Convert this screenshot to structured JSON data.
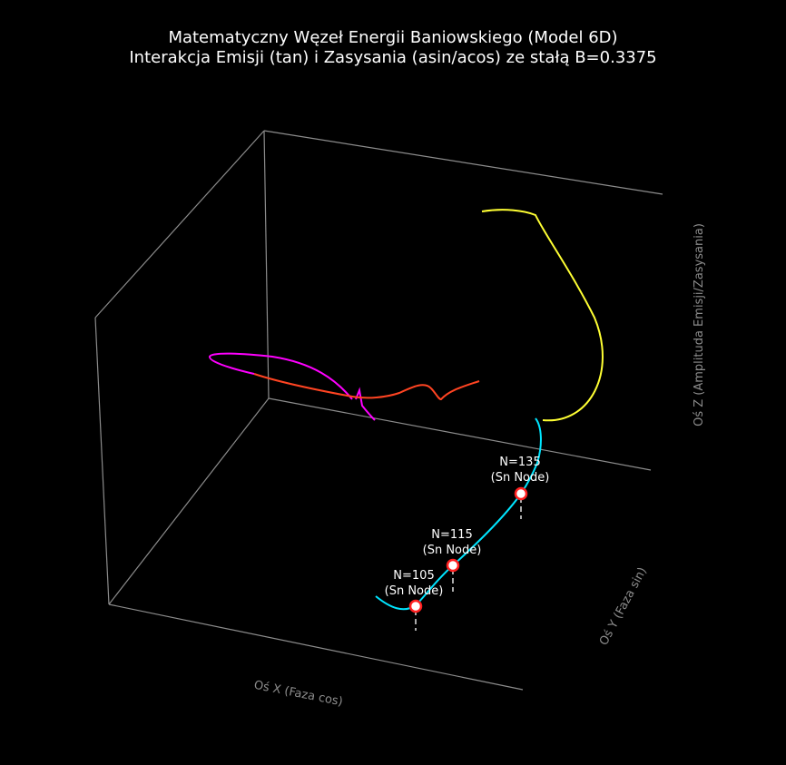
{
  "chart_data": {
    "type": "line",
    "projection": "3d",
    "title": "Matematyczny Węzeł Energii Baniowskiego (Model 6D)",
    "subtitle": "Interakcja Emisji (tan) i Zasysania (asin/acos) ze stałą B=0.3375",
    "xlabel": "Oś X (Faza cos)",
    "ylabel": "Oś Y (Faza sin)",
    "zlabel": "Oś Z (Amplituda Emisji/Zasysania)",
    "grid": false,
    "background": "#000000",
    "series_colors": [
      "#ff00ff",
      "#ff4422",
      "#00e5ff",
      "#ffff33"
    ],
    "node_marker_color": "#ff2020",
    "annotations": [
      {
        "label": "N=105\n(Sn Node)",
        "n": 105
      },
      {
        "label": "N=115\n(Sn Node)",
        "n": 115
      },
      {
        "label": "N=135\n(Sn Node)",
        "n": 135
      }
    ]
  }
}
